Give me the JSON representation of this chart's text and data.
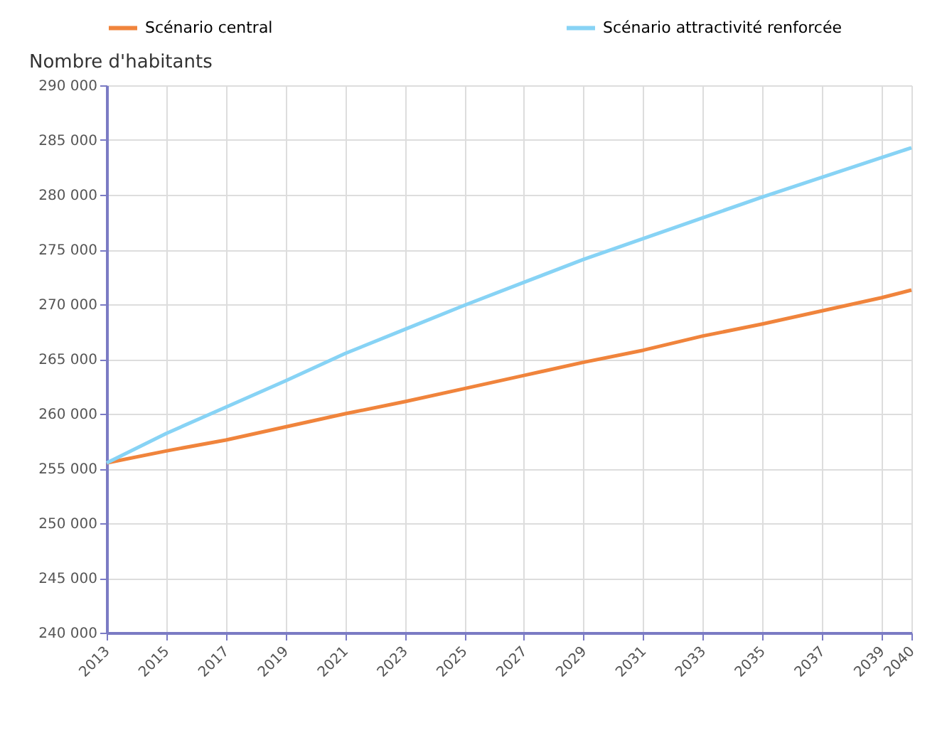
{
  "chart_data": {
    "type": "line",
    "ylabel": "Nombre d'habitants",
    "x": [
      2013,
      2015,
      2017,
      2019,
      2021,
      2023,
      2025,
      2027,
      2029,
      2031,
      2033,
      2035,
      2037,
      2039,
      2040
    ],
    "series": [
      {
        "name": "Scénario central",
        "color": "#f0843c",
        "values": [
          255500,
          256600,
          257600,
          258800,
          260000,
          261100,
          262300,
          263500,
          264700,
          265800,
          267100,
          268200,
          269400,
          270600,
          271300
        ]
      },
      {
        "name": "Scénario attractivité renforcée",
        "color": "#87d3f5",
        "values": [
          255500,
          258200,
          260600,
          263000,
          265500,
          267700,
          269900,
          272000,
          274100,
          276000,
          277900,
          279800,
          281600,
          283400,
          284300
        ]
      }
    ],
    "xlim": [
      2013,
      2040
    ],
    "xticks": [
      2013,
      2015,
      2017,
      2019,
      2021,
      2023,
      2025,
      2027,
      2029,
      2031,
      2033,
      2035,
      2037,
      2039,
      2040
    ],
    "ylim": [
      240000,
      290000
    ],
    "yticks": [
      240000,
      245000,
      250000,
      255000,
      260000,
      265000,
      270000,
      275000,
      280000,
      285000,
      290000
    ],
    "grid": true,
    "legend": "top",
    "marker": "none",
    "line_style": "solid"
  }
}
